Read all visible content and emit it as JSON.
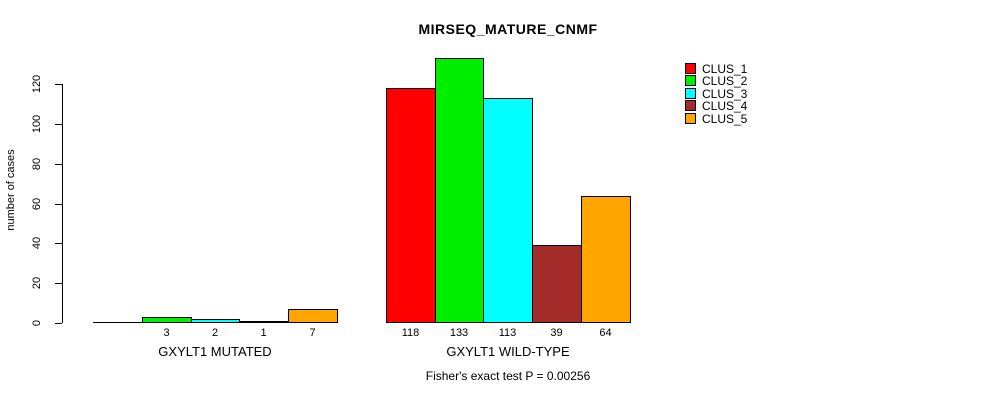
{
  "chart_data": {
    "type": "bar",
    "title": "MIRSEQ_MATURE_CNMF",
    "xlabel": "",
    "ylabel": "number of cases",
    "ylim": [
      0,
      133
    ],
    "yticks": [
      0,
      20,
      40,
      60,
      80,
      100,
      120
    ],
    "grid": false,
    "categories": [
      "GXYLT1 MUTATED",
      "GXYLT1 WILD-TYPE"
    ],
    "series": [
      {
        "name": "CLUS_1",
        "color": "#FF0000",
        "values": [
          0,
          118
        ]
      },
      {
        "name": "CLUS_2",
        "color": "#00EE00",
        "values": [
          3,
          133
        ]
      },
      {
        "name": "CLUS_3",
        "color": "#00FFFF",
        "values": [
          2,
          113
        ]
      },
      {
        "name": "CLUS_4",
        "color": "#A52A2A",
        "values": [
          1,
          39
        ]
      },
      {
        "name": "CLUS_5",
        "color": "#FFA500",
        "values": [
          7,
          64
        ]
      }
    ],
    "bar_value_labels": [
      [
        "",
        "3",
        "2",
        "1",
        "7"
      ],
      [
        "118",
        "133",
        "113",
        "39",
        "64"
      ]
    ],
    "annotation": "Fisher's exact test P = 0.00256",
    "legend_position": "right",
    "bar_border_color": "#000000",
    "background_color": "#FFFFFF"
  }
}
